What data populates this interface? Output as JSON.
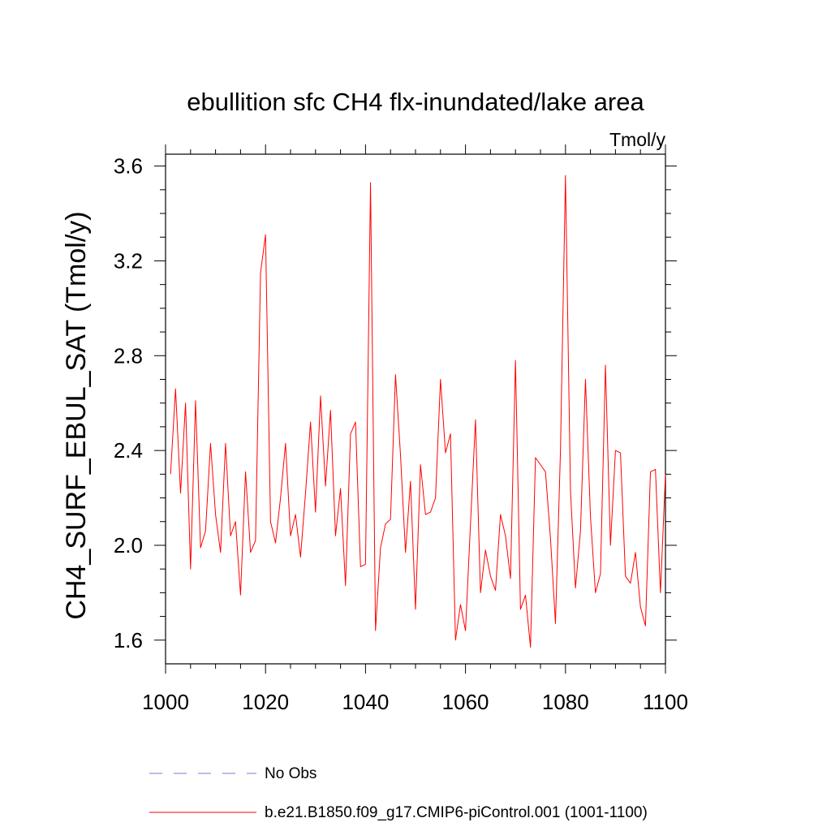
{
  "chart_data": {
    "type": "line",
    "title": "ebullition sfc CH4 flx-inundated/lake area",
    "units_label": "Tmol/y",
    "ylabel": "CH4_SURF_EBUL_SAT  (Tmol/y)",
    "xlabel": "",
    "xlim": [
      1000,
      1100
    ],
    "ylim": [
      1.5,
      3.65
    ],
    "x_ticks": [
      1000,
      1020,
      1040,
      1060,
      1080,
      1100
    ],
    "x_tick_labels": [
      "1000",
      "1020",
      "1040",
      "1060",
      "1080",
      "1100"
    ],
    "y_ticks": [
      1.6,
      2.0,
      2.4,
      2.8,
      3.2,
      3.6
    ],
    "y_tick_labels": [
      "1.6",
      "2.0",
      "2.4",
      "2.8",
      "3.2",
      "3.6"
    ],
    "series": [
      {
        "name": "b.e21.B1850.f09_g17.CMIP6-piControl.001 (1001-1100)",
        "color": "#ff0000",
        "x_start": 1001,
        "x_step": 1,
        "values": [
          2.3,
          2.66,
          2.22,
          2.6,
          1.9,
          2.61,
          1.99,
          2.06,
          2.43,
          2.13,
          1.97,
          2.43,
          2.04,
          2.1,
          1.79,
          2.31,
          1.97,
          2.02,
          3.15,
          3.31,
          2.1,
          2.01,
          2.2,
          2.43,
          2.04,
          2.13,
          1.95,
          2.22,
          2.52,
          2.14,
          2.63,
          2.25,
          2.57,
          2.04,
          2.24,
          1.83,
          2.47,
          2.52,
          1.91,
          1.92,
          3.53,
          1.64,
          1.99,
          2.09,
          2.11,
          2.72,
          2.38,
          1.97,
          2.27,
          1.73,
          2.34,
          2.13,
          2.14,
          2.2,
          2.7,
          2.39,
          2.47,
          1.6,
          1.75,
          1.64,
          2.09,
          2.53,
          1.8,
          1.98,
          1.87,
          1.81,
          2.13,
          2.04,
          1.86,
          2.78,
          1.73,
          1.79,
          1.57,
          2.37,
          2.34,
          2.31,
          2.03,
          1.67,
          2.4,
          3.56,
          2.23,
          1.82,
          2.06,
          2.7,
          2.12,
          1.8,
          1.88,
          2.76,
          2.0,
          2.4,
          2.39,
          1.87,
          1.84,
          1.97,
          1.74,
          1.66,
          2.31,
          2.32,
          1.8,
          2.3
        ]
      }
    ],
    "legend": [
      {
        "label": "No Obs",
        "color": "#7b7bc8",
        "style": "dashed"
      },
      {
        "label": "b.e21.B1850.f09_g17.CMIP6-piControl.001 (1001-1100)",
        "color": "#ff0000",
        "style": "solid"
      }
    ]
  }
}
